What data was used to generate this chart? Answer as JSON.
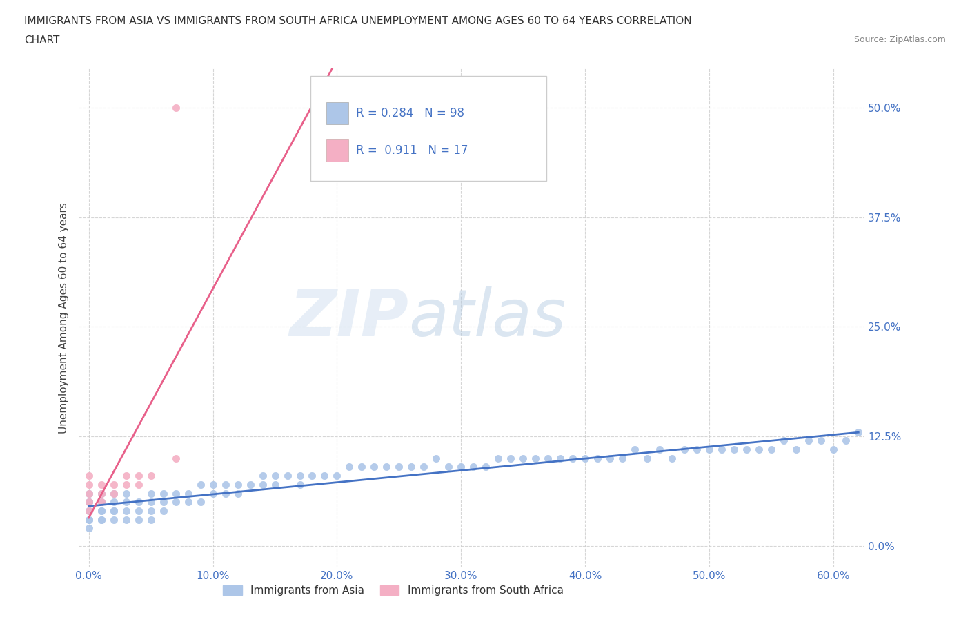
{
  "title_line1": "IMMIGRANTS FROM ASIA VS IMMIGRANTS FROM SOUTH AFRICA UNEMPLOYMENT AMONG AGES 60 TO 64 YEARS CORRELATION",
  "title_line2": "CHART",
  "source_text": "Source: ZipAtlas.com",
  "ylabel": "Unemployment Among Ages 60 to 64 years",
  "xticklabels": [
    "0.0%",
    "10.0%",
    "20.0%",
    "30.0%",
    "40.0%",
    "50.0%",
    "60.0%"
  ],
  "yticklabels_right": [
    "0.0%",
    "12.5%",
    "25.0%",
    "37.5%",
    "50.0%"
  ],
  "xlim": [
    -0.008,
    0.625
  ],
  "ylim": [
    -0.025,
    0.545
  ],
  "xticks": [
    0.0,
    0.1,
    0.2,
    0.3,
    0.4,
    0.5,
    0.6
  ],
  "yticks": [
    0.0,
    0.125,
    0.25,
    0.375,
    0.5
  ],
  "asia_color": "#adc6e8",
  "sa_color": "#f4afc4",
  "asia_line_color": "#4472c4",
  "sa_line_color": "#e8608a",
  "asia_R": 0.284,
  "asia_N": 98,
  "sa_R": 0.911,
  "sa_N": 17,
  "watermark_zip": "ZIP",
  "watermark_atlas": "atlas",
  "background_color": "#ffffff",
  "grid_color": "#cccccc",
  "legend_label_asia": "Immigrants from Asia",
  "legend_label_sa": "Immigrants from South Africa",
  "asia_x": [
    0.0,
    0.0,
    0.0,
    0.0,
    0.0,
    0.0,
    0.0,
    0.0,
    0.01,
    0.01,
    0.01,
    0.01,
    0.01,
    0.01,
    0.02,
    0.02,
    0.02,
    0.02,
    0.02,
    0.03,
    0.03,
    0.03,
    0.03,
    0.04,
    0.04,
    0.04,
    0.05,
    0.05,
    0.05,
    0.05,
    0.06,
    0.06,
    0.06,
    0.07,
    0.07,
    0.08,
    0.08,
    0.09,
    0.09,
    0.1,
    0.1,
    0.11,
    0.11,
    0.12,
    0.12,
    0.13,
    0.14,
    0.14,
    0.15,
    0.15,
    0.16,
    0.17,
    0.17,
    0.18,
    0.19,
    0.2,
    0.21,
    0.22,
    0.23,
    0.24,
    0.25,
    0.26,
    0.27,
    0.28,
    0.29,
    0.3,
    0.31,
    0.32,
    0.33,
    0.34,
    0.35,
    0.36,
    0.37,
    0.38,
    0.39,
    0.4,
    0.41,
    0.42,
    0.43,
    0.44,
    0.45,
    0.46,
    0.47,
    0.48,
    0.49,
    0.5,
    0.51,
    0.52,
    0.53,
    0.54,
    0.55,
    0.56,
    0.57,
    0.58,
    0.59,
    0.6,
    0.61,
    0.62
  ],
  "asia_y": [
    0.02,
    0.03,
    0.04,
    0.05,
    0.05,
    0.06,
    0.04,
    0.03,
    0.03,
    0.04,
    0.04,
    0.05,
    0.06,
    0.03,
    0.03,
    0.04,
    0.05,
    0.06,
    0.04,
    0.04,
    0.05,
    0.03,
    0.06,
    0.04,
    0.05,
    0.03,
    0.04,
    0.05,
    0.06,
    0.03,
    0.04,
    0.05,
    0.06,
    0.05,
    0.06,
    0.05,
    0.06,
    0.05,
    0.07,
    0.06,
    0.07,
    0.06,
    0.07,
    0.06,
    0.07,
    0.07,
    0.07,
    0.08,
    0.07,
    0.08,
    0.08,
    0.08,
    0.07,
    0.08,
    0.08,
    0.08,
    0.09,
    0.09,
    0.09,
    0.09,
    0.09,
    0.09,
    0.09,
    0.1,
    0.09,
    0.09,
    0.09,
    0.09,
    0.1,
    0.1,
    0.1,
    0.1,
    0.1,
    0.1,
    0.1,
    0.1,
    0.1,
    0.1,
    0.1,
    0.11,
    0.1,
    0.11,
    0.1,
    0.11,
    0.11,
    0.11,
    0.11,
    0.11,
    0.11,
    0.11,
    0.11,
    0.12,
    0.11,
    0.12,
    0.12,
    0.11,
    0.12,
    0.13
  ],
  "sa_x": [
    0.0,
    0.0,
    0.0,
    0.0,
    0.0,
    0.01,
    0.01,
    0.01,
    0.02,
    0.02,
    0.03,
    0.03,
    0.04,
    0.04,
    0.05,
    0.07,
    0.07
  ],
  "sa_y": [
    0.04,
    0.05,
    0.06,
    0.07,
    0.08,
    0.05,
    0.06,
    0.07,
    0.06,
    0.07,
    0.07,
    0.08,
    0.07,
    0.08,
    0.08,
    0.1,
    0.5
  ]
}
